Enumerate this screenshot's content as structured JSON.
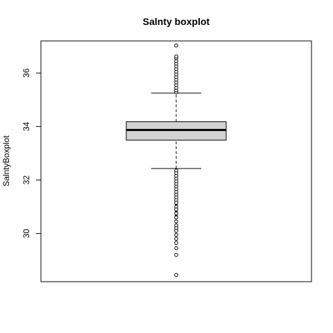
{
  "chart_data": {
    "type": "boxplot",
    "title": "Salnty boxplot",
    "xlabel": "",
    "ylabel": "SalntyBoxplot",
    "ylim": [
      28.2,
      37.2
    ],
    "yticks": [
      30,
      32,
      34,
      36
    ],
    "box": {
      "whisker_low": 32.43,
      "q1": 33.49,
      "median": 33.87,
      "q3": 34.18,
      "whisker_high": 35.25
    },
    "outliers_high": [
      35.28,
      35.35,
      35.45,
      35.55,
      35.65,
      35.75,
      35.85,
      35.95,
      36.05,
      36.15,
      36.25,
      36.35,
      36.45,
      36.55,
      36.62,
      37.03
    ],
    "outliers_low": [
      32.35,
      32.25,
      32.15,
      32.05,
      31.95,
      31.85,
      31.75,
      31.65,
      31.55,
      31.45,
      31.35,
      31.25,
      31.15,
      31.0,
      30.9,
      30.75,
      30.6,
      30.45,
      30.3,
      30.2,
      30.1,
      29.95,
      29.8,
      29.65,
      29.45,
      29.2,
      28.45
    ],
    "grid": false,
    "colors": {
      "box_fill": "#d3d3d3",
      "line": "#000000",
      "background": "#ffffff"
    }
  }
}
